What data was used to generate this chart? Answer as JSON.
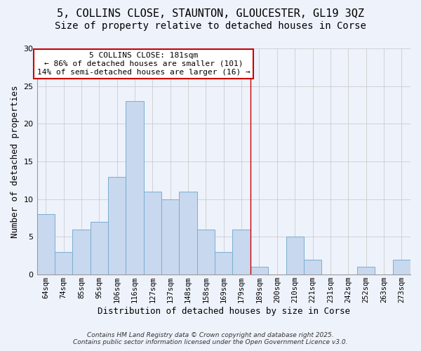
{
  "title1": "5, COLLINS CLOSE, STAUNTON, GLOUCESTER, GL19 3QZ",
  "title2": "Size of property relative to detached houses in Corse",
  "xlabel": "Distribution of detached houses by size in Corse",
  "ylabel": "Number of detached properties",
  "bar_labels": [
    "64sqm",
    "74sqm",
    "85sqm",
    "95sqm",
    "106sqm",
    "116sqm",
    "127sqm",
    "137sqm",
    "148sqm",
    "158sqm",
    "169sqm",
    "179sqm",
    "189sqm",
    "200sqm",
    "210sqm",
    "221sqm",
    "231sqm",
    "242sqm",
    "252sqm",
    "263sqm",
    "273sqm"
  ],
  "bar_values": [
    8,
    3,
    6,
    7,
    13,
    23,
    11,
    10,
    11,
    6,
    3,
    6,
    1,
    0,
    5,
    2,
    0,
    0,
    1,
    0,
    2
  ],
  "bar_color": "#c8d8ee",
  "bar_edge_color": "#7aaed0",
  "annotation_box_text": "5 COLLINS CLOSE: 181sqm\n← 86% of detached houses are smaller (101)\n14% of semi-detached houses are larger (16) →",
  "annotation_box_color": "#ffffff",
  "annotation_box_border": "#cc0000",
  "vline_color": "#cc0000",
  "vline_x": 11.5,
  "ylim": [
    0,
    30
  ],
  "yticks": [
    0,
    5,
    10,
    15,
    20,
    25,
    30
  ],
  "grid_color": "#cccccc",
  "bg_color": "#eef2fb",
  "footer_text": "Contains HM Land Registry data © Crown copyright and database right 2025.\nContains public sector information licensed under the Open Government Licence v3.0.",
  "title1_fontsize": 11,
  "title2_fontsize": 10,
  "xlabel_fontsize": 9,
  "ylabel_fontsize": 9,
  "annotation_fontsize": 8,
  "footer_fontsize": 6.5
}
